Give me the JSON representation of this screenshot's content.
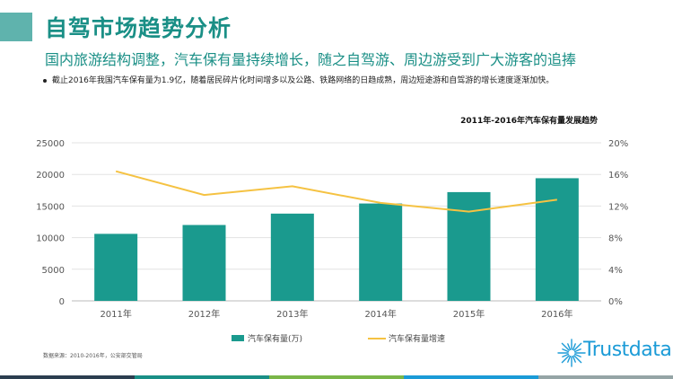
{
  "header": {
    "title": "自驾市场趋势分析",
    "subtitle": "国内旅游结构调整，汽车保有量持续增长，随之自驾游、周边游受到广大游客的追捧",
    "bullet": "截止2016年我国汽车保有量为1.9亿，随着居民碎片化时间增多以及公路、铁路网络的日趋成熟，周边短途游和自驾游的增长速度逐渐加快。"
  },
  "footer": {
    "source": "数据来源：2010-2016年，公安部交管局",
    "logo_text": "Trustdata"
  },
  "colors": {
    "accent": "#1a8f86",
    "bar": "#1a9a8e",
    "line": "#f5c242",
    "logo": "#1b9bd7"
  },
  "chart_data": {
    "type": "bar",
    "title": "2011年-2016年汽车保有量发展趋势",
    "categories": [
      "2011年",
      "2012年",
      "2013年",
      "2014年",
      "2015年",
      "2016年"
    ],
    "series": [
      {
        "name": "汽车保有量(万)",
        "type": "bar",
        "axis": "left",
        "values": [
          10600,
          12000,
          13800,
          15400,
          17200,
          19400
        ]
      },
      {
        "name": "汽车保有量增速",
        "type": "line",
        "axis": "right",
        "values": [
          16.4,
          13.4,
          14.5,
          12.4,
          11.3,
          12.8
        ]
      }
    ],
    "ylim": [
      0,
      25000
    ],
    "y_ticks": [
      "0",
      "5000",
      "10000",
      "15000",
      "20000",
      "25000"
    ],
    "y2lim": [
      0,
      20
    ],
    "y2_ticks": [
      "0%",
      "4%",
      "8%",
      "12%",
      "16%",
      "20%"
    ],
    "grid": true,
    "legend": "bottom"
  }
}
